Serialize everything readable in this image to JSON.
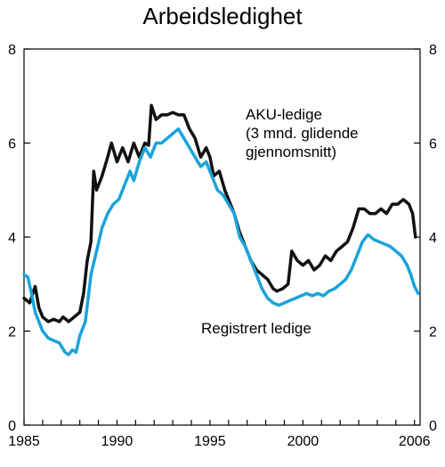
{
  "chart_data": {
    "type": "line",
    "title": "Arbeidsledighet",
    "xlabel": "",
    "ylabel": "",
    "xlim": [
      1985,
      2006.3
    ],
    "ylim": [
      0,
      8
    ],
    "x_ticks": [
      1985,
      1990,
      1995,
      2000,
      2006
    ],
    "x_tick_labels": [
      "1985",
      "1990",
      "1995",
      "2000",
      "2006"
    ],
    "y_ticks": [
      0,
      2,
      4,
      6,
      8
    ],
    "y_tick_labels": [
      "0",
      "2",
      "4",
      "6",
      "8"
    ],
    "grid": false,
    "annotations": [
      {
        "lines": [
          "AKU-ledige",
          "(3 mnd. glidende",
          "gjennomsnitt)"
        ],
        "series": "AKU"
      },
      {
        "lines": [
          "Registrert ledige"
        ],
        "series": "Registrert"
      }
    ],
    "series": [
      {
        "key": "AKU",
        "color": "#111111",
        "points": [
          [
            1985.0,
            2.7
          ],
          [
            1985.3,
            2.6
          ],
          [
            1985.6,
            2.95
          ],
          [
            1985.8,
            2.5
          ],
          [
            1986.0,
            2.3
          ],
          [
            1986.3,
            2.2
          ],
          [
            1986.6,
            2.25
          ],
          [
            1986.9,
            2.2
          ],
          [
            1987.1,
            2.3
          ],
          [
            1987.4,
            2.2
          ],
          [
            1987.7,
            2.3
          ],
          [
            1988.0,
            2.4
          ],
          [
            1988.2,
            2.8
          ],
          [
            1988.4,
            3.5
          ],
          [
            1988.6,
            3.9
          ],
          [
            1988.75,
            5.4
          ],
          [
            1988.9,
            5.0
          ],
          [
            1989.2,
            5.3
          ],
          [
            1989.5,
            5.7
          ],
          [
            1989.7,
            6.0
          ],
          [
            1990.0,
            5.6
          ],
          [
            1990.3,
            5.9
          ],
          [
            1990.6,
            5.6
          ],
          [
            1990.9,
            6.0
          ],
          [
            1991.2,
            5.7
          ],
          [
            1991.5,
            6.0
          ],
          [
            1991.7,
            5.95
          ],
          [
            1991.85,
            6.8
          ],
          [
            1992.1,
            6.5
          ],
          [
            1992.4,
            6.6
          ],
          [
            1992.7,
            6.6
          ],
          [
            1993.0,
            6.65
          ],
          [
            1993.3,
            6.6
          ],
          [
            1993.6,
            6.6
          ],
          [
            1993.9,
            6.3
          ],
          [
            1994.2,
            6.1
          ],
          [
            1994.5,
            5.7
          ],
          [
            1994.8,
            5.9
          ],
          [
            1995.0,
            5.7
          ],
          [
            1995.2,
            5.3
          ],
          [
            1995.5,
            5.4
          ],
          [
            1995.8,
            5.0
          ],
          [
            1996.0,
            4.8
          ],
          [
            1996.3,
            4.5
          ],
          [
            1996.6,
            4.1
          ],
          [
            1996.9,
            3.8
          ],
          [
            1997.2,
            3.5
          ],
          [
            1997.5,
            3.3
          ],
          [
            1997.8,
            3.2
          ],
          [
            1998.1,
            3.1
          ],
          [
            1998.4,
            2.9
          ],
          [
            1998.6,
            2.85
          ],
          [
            1998.9,
            2.9
          ],
          [
            1999.2,
            3.0
          ],
          [
            1999.4,
            3.7
          ],
          [
            1999.7,
            3.5
          ],
          [
            2000.0,
            3.4
          ],
          [
            2000.3,
            3.5
          ],
          [
            2000.6,
            3.3
          ],
          [
            2000.9,
            3.4
          ],
          [
            2001.2,
            3.6
          ],
          [
            2001.5,
            3.5
          ],
          [
            2001.8,
            3.7
          ],
          [
            2002.1,
            3.8
          ],
          [
            2002.4,
            3.9
          ],
          [
            2002.7,
            4.2
          ],
          [
            2003.0,
            4.6
          ],
          [
            2003.3,
            4.6
          ],
          [
            2003.6,
            4.5
          ],
          [
            2003.9,
            4.5
          ],
          [
            2004.2,
            4.6
          ],
          [
            2004.5,
            4.5
          ],
          [
            2004.8,
            4.7
          ],
          [
            2005.1,
            4.7
          ],
          [
            2005.4,
            4.8
          ],
          [
            2005.7,
            4.7
          ],
          [
            2005.9,
            4.5
          ],
          [
            2006.05,
            4.0
          ]
        ]
      },
      {
        "key": "Registrert",
        "color": "#1ba3db",
        "points": [
          [
            1985.0,
            3.2
          ],
          [
            1985.2,
            3.15
          ],
          [
            1985.4,
            2.8
          ],
          [
            1985.6,
            2.4
          ],
          [
            1985.8,
            2.2
          ],
          [
            1986.0,
            2.0
          ],
          [
            1986.3,
            1.85
          ],
          [
            1986.6,
            1.8
          ],
          [
            1986.9,
            1.75
          ],
          [
            1987.2,
            1.55
          ],
          [
            1987.4,
            1.5
          ],
          [
            1987.6,
            1.6
          ],
          [
            1987.8,
            1.55
          ],
          [
            1988.0,
            1.9
          ],
          [
            1988.3,
            2.2
          ],
          [
            1988.6,
            3.2
          ],
          [
            1988.9,
            3.7
          ],
          [
            1989.2,
            4.2
          ],
          [
            1989.5,
            4.5
          ],
          [
            1989.8,
            4.7
          ],
          [
            1990.1,
            4.8
          ],
          [
            1990.4,
            5.1
          ],
          [
            1990.7,
            5.4
          ],
          [
            1990.9,
            5.2
          ],
          [
            1991.2,
            5.6
          ],
          [
            1991.5,
            5.9
          ],
          [
            1991.8,
            5.7
          ],
          [
            1992.1,
            6.0
          ],
          [
            1992.4,
            6.0
          ],
          [
            1992.7,
            6.1
          ],
          [
            1993.0,
            6.2
          ],
          [
            1993.3,
            6.3
          ],
          [
            1993.6,
            6.1
          ],
          [
            1993.9,
            5.9
          ],
          [
            1994.2,
            5.7
          ],
          [
            1994.5,
            5.5
          ],
          [
            1994.8,
            5.6
          ],
          [
            1995.1,
            5.3
          ],
          [
            1995.4,
            5.0
          ],
          [
            1995.7,
            4.9
          ],
          [
            1996.0,
            4.7
          ],
          [
            1996.3,
            4.5
          ],
          [
            1996.6,
            4.0
          ],
          [
            1996.9,
            3.8
          ],
          [
            1997.2,
            3.5
          ],
          [
            1997.5,
            3.2
          ],
          [
            1997.8,
            2.9
          ],
          [
            1998.1,
            2.7
          ],
          [
            1998.4,
            2.6
          ],
          [
            1998.7,
            2.55
          ],
          [
            1999.0,
            2.6
          ],
          [
            1999.3,
            2.65
          ],
          [
            1999.6,
            2.7
          ],
          [
            1999.9,
            2.75
          ],
          [
            2000.2,
            2.8
          ],
          [
            2000.5,
            2.75
          ],
          [
            2000.8,
            2.8
          ],
          [
            2001.1,
            2.75
          ],
          [
            2001.4,
            2.85
          ],
          [
            2001.7,
            2.9
          ],
          [
            2002.0,
            3.0
          ],
          [
            2002.3,
            3.1
          ],
          [
            2002.6,
            3.3
          ],
          [
            2002.9,
            3.6
          ],
          [
            2003.2,
            3.9
          ],
          [
            2003.5,
            4.05
          ],
          [
            2003.8,
            3.95
          ],
          [
            2004.1,
            3.9
          ],
          [
            2004.4,
            3.85
          ],
          [
            2004.7,
            3.8
          ],
          [
            2005.0,
            3.7
          ],
          [
            2005.3,
            3.6
          ],
          [
            2005.6,
            3.4
          ],
          [
            2005.8,
            3.2
          ],
          [
            2006.0,
            2.95
          ],
          [
            2006.2,
            2.8
          ]
        ]
      }
    ]
  }
}
